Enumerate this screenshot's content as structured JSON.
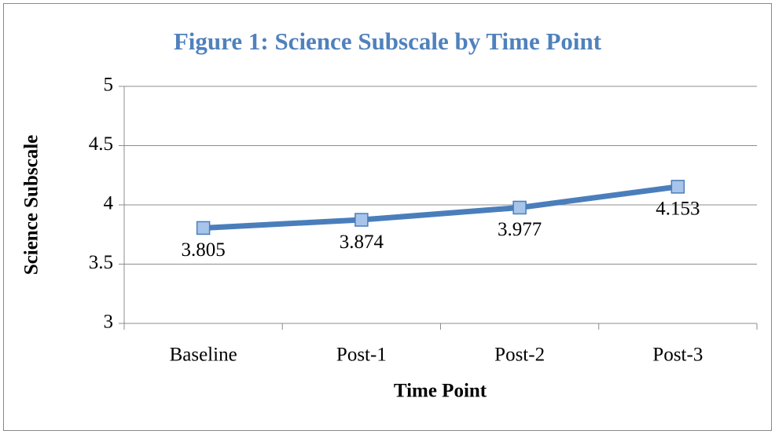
{
  "chart_data": {
    "type": "line",
    "title": "Figure 1: Science Subscale by Time Point",
    "x_label": "Time Point",
    "y_label": "Science Subscale",
    "categories": [
      "Baseline",
      "Post-1",
      "Post-2",
      "Post-3"
    ],
    "series": [
      {
        "name": "Science Subscale",
        "color": "#4a7ebb",
        "values": [
          3.805,
          3.874,
          3.977,
          4.153
        ]
      }
    ],
    "ylim": [
      3,
      5
    ],
    "yticks": [
      3,
      3.5,
      4,
      4.5,
      5
    ],
    "grid": true,
    "legend": false
  }
}
